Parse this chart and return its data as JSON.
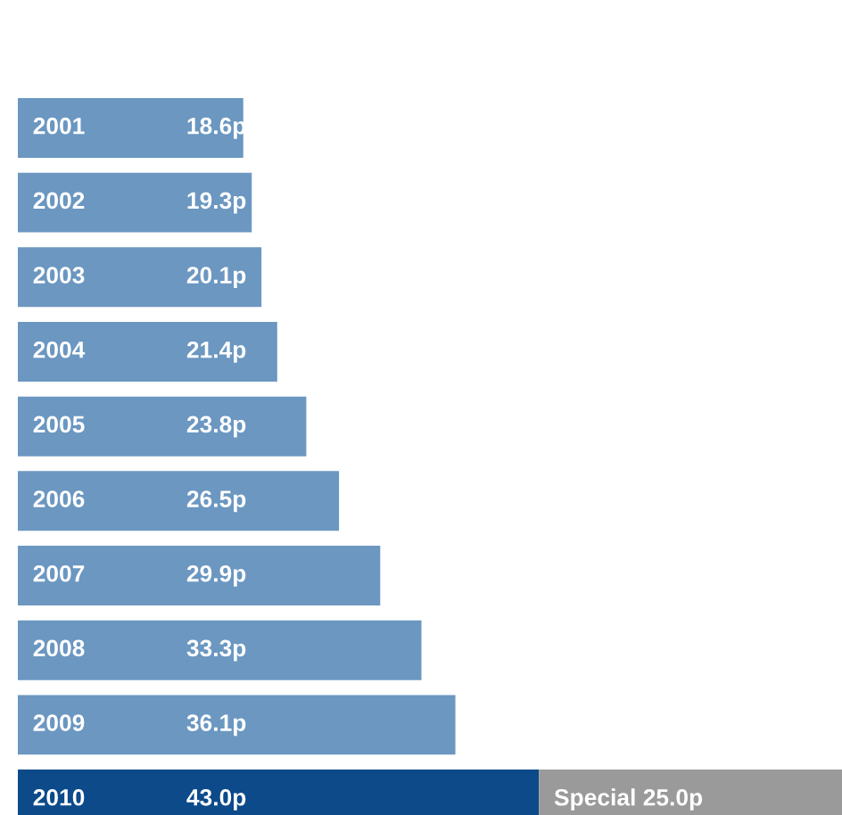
{
  "chart_data": {
    "type": "bar",
    "orientation": "horizontal",
    "stacked": true,
    "categories": [
      "2001",
      "2002",
      "2003",
      "2004",
      "2005",
      "2006",
      "2007",
      "2008",
      "2009",
      "2010"
    ],
    "series": [
      {
        "colors": [
          "#6b97c1",
          "#6b97c1",
          "#6b97c1",
          "#6b97c1",
          "#6b97c1",
          "#6b97c1",
          "#6b97c1",
          "#6b97c1",
          "#6b97c1",
          "#0c4a8a"
        ],
        "values": [
          18.6,
          19.3,
          20.1,
          21.4,
          23.8,
          26.5,
          29.9,
          33.3,
          36.1,
          43.0
        ],
        "value_labels": [
          "18.6p",
          "19.3p",
          "20.1p",
          "21.4p",
          "23.8p",
          "26.5p",
          "29.9p",
          "33.3p",
          "36.1p",
          "43.0p"
        ]
      },
      {
        "color": "#9a9a9a",
        "values": [
          null,
          null,
          null,
          null,
          null,
          null,
          null,
          null,
          null,
          25.0
        ],
        "value_labels": [
          null,
          null,
          null,
          null,
          null,
          null,
          null,
          null,
          null,
          "Special 25.0p"
        ]
      }
    ]
  }
}
